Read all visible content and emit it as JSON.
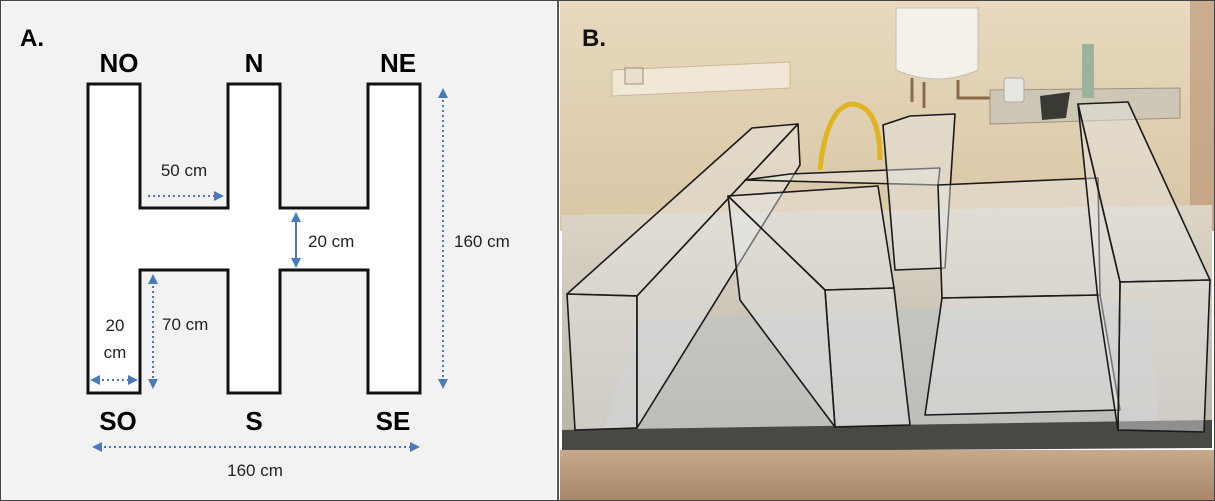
{
  "panel_a": {
    "label": "A.",
    "directions": {
      "nw": "NO",
      "n": "N",
      "ne": "NE",
      "sw": "SO",
      "s": "S",
      "se": "SE"
    },
    "measurements": {
      "top_gap_width": "50 cm",
      "cross_bar": "20 cm",
      "total_height": "160 cm",
      "arm_width_1": "20",
      "arm_width_2": "cm",
      "lower_arm": "70 cm",
      "total_width": "160 cm"
    },
    "arrow_color": "#4a7ab8"
  },
  "panel_b": {
    "label": "B."
  }
}
